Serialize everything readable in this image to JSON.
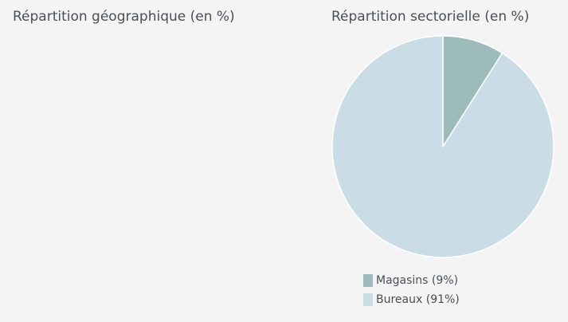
{
  "geo": {
    "title": "Répartition géographique (en %)"
  },
  "sector": {
    "title": "Répartition sectorielle (en %)"
  },
  "chart_data": [
    {
      "type": "pie",
      "title": "Répartition géographique (en %)",
      "categories": [],
      "values": []
    },
    {
      "type": "pie",
      "title": "Répartition sectorielle (en %)",
      "categories": [
        "Magasins",
        "Bureaux"
      ],
      "values": [
        9,
        91
      ],
      "legend_labels": [
        "Magasins (9%)",
        "Bureaux (91%)"
      ],
      "colors": [
        "#9dbbba",
        "#cadde6"
      ],
      "start_angle_deg": 0,
      "direction": "clockwise",
      "legend": "bottom"
    }
  ]
}
